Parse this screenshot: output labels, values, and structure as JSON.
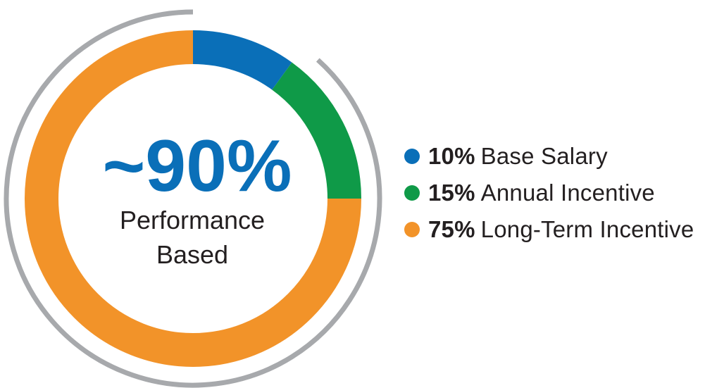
{
  "center": {
    "headline": "~90%",
    "sublabel_line1": "Performance",
    "sublabel_line2": "Based"
  },
  "colors": {
    "base": "#0a6fb8",
    "annual": "#0f9a48",
    "long_term": "#f29329",
    "outer_arc": "#a7a9ac",
    "text": "#231f20"
  },
  "chart_data": {
    "type": "pie",
    "title": "",
    "slices": [
      {
        "label": "Base Salary",
        "value": 10,
        "display": "10%",
        "color": "#0a6fb8"
      },
      {
        "label": "Annual Incentive",
        "value": 15,
        "display": "15%",
        "color": "#0f9a48"
      },
      {
        "label": "Long-Term Incentive",
        "value": 75,
        "display": "75%",
        "color": "#f29329"
      }
    ],
    "performance_based_share": 90,
    "legend_position": "right"
  }
}
